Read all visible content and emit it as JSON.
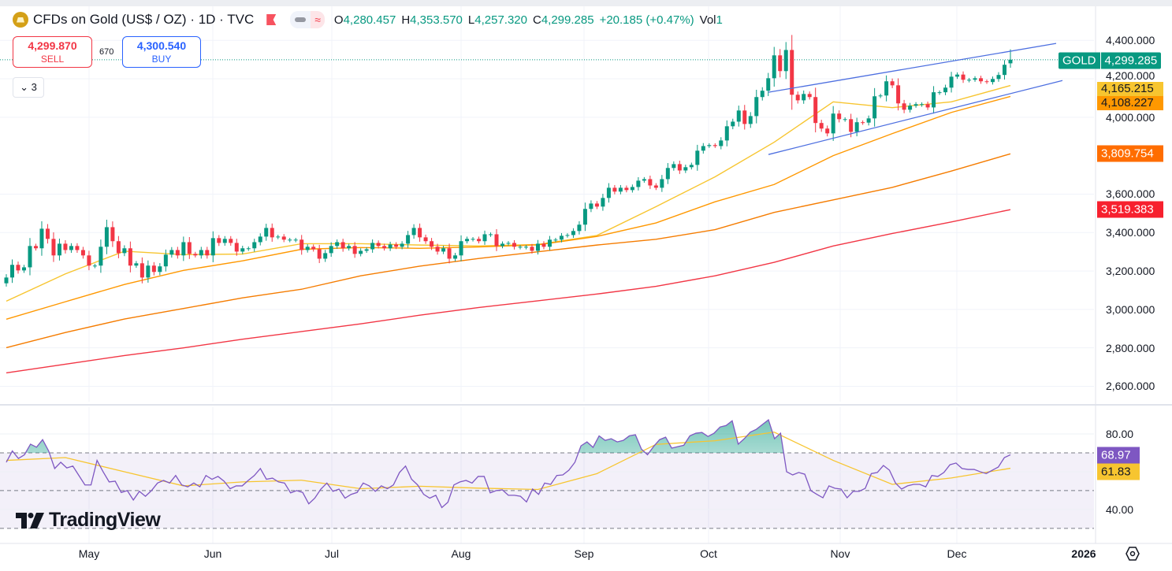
{
  "header": {
    "title": "CFDs on Gold (US$ / OZ) · 1D · TVC",
    "ohlc": [
      {
        "k": "O",
        "v": "4,280.457"
      },
      {
        "k": "H",
        "v": "4,353.570"
      },
      {
        "k": "L",
        "v": "4,257.320"
      },
      {
        "k": "C",
        "v": "4,299.285"
      }
    ],
    "change": "+20.185 (+0.47%)",
    "vol_label": "Vol",
    "vol_value": "1",
    "icons": [
      "gold-symbol-icon",
      "flag-icon",
      "visibility-icon",
      "wave-icon"
    ]
  },
  "trade": {
    "sell_price": "4,299.870",
    "sell_label": "SELL",
    "spread": "670",
    "buy_price": "4,300.540",
    "buy_label": "BUY"
  },
  "indicators_toggle": {
    "icon": "chevron-down-icon",
    "count": "3"
  },
  "price_axis": {
    "ticks": [
      "4,400.000",
      "4,200.000",
      "4,000.000",
      "3,600.000",
      "3,400.000",
      "3,200.000",
      "3,000.000",
      "2,800.000",
      "2,600.000"
    ],
    "symbol_tag": {
      "label": "GOLD",
      "value": "4,299.285",
      "color": "#089981"
    },
    "ma_tags": [
      {
        "value": "4,165.215",
        "color": "#f7c530"
      },
      {
        "value": "4,108.227",
        "color": "#ff9800"
      },
      {
        "value": "3,809.754",
        "color": "#ff6d00"
      },
      {
        "value": "3,519.383",
        "color": "#f7202e"
      }
    ]
  },
  "rsi_axis": {
    "ticks": [
      "80.00",
      "40.00"
    ],
    "rsi_tag": {
      "value": "68.97",
      "color": "#7e57c2"
    },
    "ma_tag": {
      "value": "61.83",
      "color": "#f7c530"
    }
  },
  "time_axis": {
    "labels": [
      "May",
      "Jun",
      "Jul",
      "Aug",
      "Sep",
      "Oct",
      "Nov",
      "Dec",
      "2026"
    ]
  },
  "branding": {
    "logo_text": "TradingView"
  },
  "colors": {
    "up": "#089981",
    "down": "#f23645",
    "trendline": "#4d6fe0",
    "rsi": "#7e57c2",
    "rsi_ma": "#f7c530"
  },
  "chart_data": {
    "type": "candlestick",
    "ylim": [
      2520,
      4610
    ],
    "grid": true,
    "last_bar": {
      "open": 4280.457,
      "high": 4353.57,
      "low": 4257.32,
      "close": 4299.285
    },
    "close": [
      3166,
      3232,
      3203,
      3219,
      3330,
      3318,
      3420,
      3367,
      3281,
      3342,
      3309,
      3330,
      3309,
      3281,
      3228,
      3228,
      3326,
      3428,
      3355,
      3293,
      3318,
      3228,
      3240,
      3166,
      3228,
      3195,
      3224,
      3285,
      3309,
      3281,
      3350,
      3289,
      3281,
      3309,
      3281,
      3371,
      3346,
      3367,
      3346,
      3301,
      3318,
      3318,
      3350,
      3379,
      3424,
      3375,
      3379,
      3363,
      3363,
      3363,
      3309,
      3326,
      3313,
      3264,
      3293,
      3330,
      3350,
      3318,
      3330,
      3289,
      3305,
      3313,
      3346,
      3330,
      3318,
      3338,
      3326,
      3342,
      3387,
      3424,
      3375,
      3355,
      3326,
      3301,
      3318,
      3264,
      3281,
      3355,
      3367,
      3367,
      3355,
      3391,
      3391,
      3330,
      3342,
      3346,
      3326,
      3326,
      3326,
      3305,
      3342,
      3326,
      3363,
      3363,
      3383,
      3387,
      3408,
      3441,
      3523,
      3551,
      3535,
      3580,
      3633,
      3613,
      3633,
      3621,
      3637,
      3670,
      3678,
      3645,
      3633,
      3678,
      3736,
      3756,
      3723,
      3740,
      3752,
      3826,
      3850,
      3855,
      3850,
      3879,
      3953,
      3977,
      4035,
      3965,
      4006,
      4105,
      4138,
      4203,
      4322,
      4240,
      4350,
      4117,
      4088,
      4121,
      4105,
      3970,
      3941,
      3916,
      4019,
      3990,
      3990,
      3924,
      3974,
      3972,
      3994,
      4109,
      4113,
      4187,
      4166,
      4072,
      4039,
      4060,
      4068,
      4068,
      4051,
      4130,
      4130,
      4154,
      4211,
      4222,
      4195,
      4195,
      4203,
      4187,
      4183,
      4199,
      4220,
      4273,
      4299.285
    ],
    "moving_averages": [
      {
        "color": "#f7c530",
        "values": [
          3043,
          3185,
          3303,
          3285,
          3288,
          3342,
          3342,
          3335,
          3330,
          3338,
          3385,
          3535,
          3690,
          3870,
          4080,
          4050,
          4080,
          4165.215
        ]
      },
      {
        "color": "#ff9800",
        "values": [
          2949,
          3040,
          3130,
          3203,
          3253,
          3313,
          3322,
          3318,
          3325,
          3336,
          3380,
          3450,
          3560,
          3650,
          3800,
          3915,
          4025,
          4108.227
        ]
      },
      {
        "color": "#f57c00",
        "values": [
          2801,
          2880,
          2950,
          3005,
          3060,
          3105,
          3175,
          3225,
          3265,
          3300,
          3335,
          3365,
          3415,
          3505,
          3570,
          3635,
          3720,
          3809.754
        ]
      },
      {
        "color": "#f23645",
        "values": [
          2670,
          2715,
          2760,
          2800,
          2845,
          2885,
          2925,
          2970,
          3010,
          3045,
          3080,
          3120,
          3175,
          3245,
          3330,
          3395,
          3455,
          3519.383
        ]
      }
    ],
    "trendlines": [
      {
        "from_price": 4130,
        "to_price": 4384
      },
      {
        "from_price": 3806,
        "to_price": 4191
      }
    ],
    "rsi": {
      "ylim": [
        22,
        94.2
      ],
      "levels": [
        70,
        50,
        30
      ],
      "values": [
        65,
        71,
        67,
        69,
        74.6,
        73,
        77,
        71,
        61.7,
        65,
        62,
        63,
        58,
        53,
        53,
        66,
        60,
        54.6,
        55,
        49,
        50,
        45,
        49.6,
        47,
        50,
        54,
        55.4,
        54,
        58,
        53,
        52,
        54,
        52,
        58,
        56,
        57.5,
        55,
        51,
        52.5,
        52.5,
        55.4,
        58,
        61.7,
        56,
        56.6,
        54.6,
        54,
        48.8,
        50,
        49,
        43,
        46,
        50.8,
        54,
        49.6,
        50.8,
        46,
        48,
        49,
        54,
        52.5,
        49.6,
        52.5,
        51,
        53,
        59.6,
        63,
        56,
        53,
        48,
        46,
        47.5,
        41,
        43.8,
        53,
        54.6,
        55.4,
        54,
        57.5,
        57.5,
        48.8,
        50,
        50.4,
        47.5,
        47.5,
        47,
        44,
        50.8,
        48,
        54,
        53.3,
        58,
        58.3,
        60.8,
        65,
        73.7,
        75.8,
        72.9,
        79,
        76.6,
        77.5,
        75.8,
        76.6,
        79,
        79.6,
        72,
        69,
        73.3,
        77,
        78.3,
        72.5,
        73.3,
        74,
        79,
        80.4,
        80.8,
        78.7,
        80.4,
        83.7,
        84.5,
        87,
        74.6,
        77.5,
        81,
        82.5,
        85,
        87.5,
        77.5,
        80.4,
        60,
        58.3,
        59.6,
        58.7,
        50,
        48,
        46.2,
        52.5,
        51.2,
        50.8,
        46.2,
        49.6,
        49.6,
        51.2,
        59,
        59.6,
        63.3,
        60.8,
        54,
        50.8,
        52.5,
        53.3,
        53.3,
        52,
        58,
        57.5,
        59.6,
        63.7,
        64.6,
        61.7,
        61.2,
        61.2,
        60,
        59,
        60.8,
        62.5,
        67.5,
        68.97
      ],
      "ma_values": [
        66,
        67.5,
        60,
        52.5,
        54.6,
        55.5,
        51,
        52.3,
        51.3,
        50.6,
        59,
        74.5,
        76.4,
        81,
        66,
        53.3,
        56.7,
        61.83
      ]
    }
  }
}
